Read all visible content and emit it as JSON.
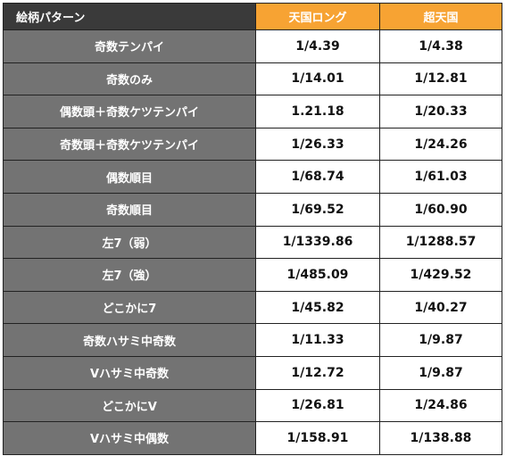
{
  "table": {
    "headers": [
      "絵柄パターン",
      "天国ロング",
      "超天国"
    ],
    "rows": [
      {
        "pattern": "奇数テンパイ",
        "tengoku_long": "1/4.39",
        "cho_tengoku": "1/4.38"
      },
      {
        "pattern": "奇数のみ",
        "tengoku_long": "1/14.01",
        "cho_tengoku": "1/12.81"
      },
      {
        "pattern": "偶数頭＋奇数ケツテンパイ",
        "tengoku_long": "1.21.18",
        "cho_tengoku": "1/20.33"
      },
      {
        "pattern": "奇数頭＋奇数ケツテンパイ",
        "tengoku_long": "1/26.33",
        "cho_tengoku": "1/24.26"
      },
      {
        "pattern": "偶数順目",
        "tengoku_long": "1/68.74",
        "cho_tengoku": "1/61.03"
      },
      {
        "pattern": "奇数順目",
        "tengoku_long": "1/69.52",
        "cho_tengoku": "1/60.90"
      },
      {
        "pattern": "左7（弱）",
        "tengoku_long": "1/1339.86",
        "cho_tengoku": "1/1288.57"
      },
      {
        "pattern": "左7（強）",
        "tengoku_long": "1/485.09",
        "cho_tengoku": "1/429.52"
      },
      {
        "pattern": "どこかに7",
        "tengoku_long": "1/45.82",
        "cho_tengoku": "1/40.27"
      },
      {
        "pattern": "奇数ハサミ中奇数",
        "tengoku_long": "1/11.33",
        "cho_tengoku": "1/9.87"
      },
      {
        "pattern": "Vハサミ中奇数",
        "tengoku_long": "1/12.72",
        "cho_tengoku": "1/9.87"
      },
      {
        "pattern": "どこかにV",
        "tengoku_long": "1/26.81",
        "cho_tengoku": "1/24.86"
      },
      {
        "pattern": "Vハサミ中偶数",
        "tengoku_long": "1/158.91",
        "cho_tengoku": "1/138.88"
      }
    ]
  },
  "colors": {
    "header_dark": "#3a3a3a",
    "header_accent": "#f7a333",
    "label_cell": "#737373",
    "value_cell": "#ffffff",
    "border": "#222222"
  }
}
